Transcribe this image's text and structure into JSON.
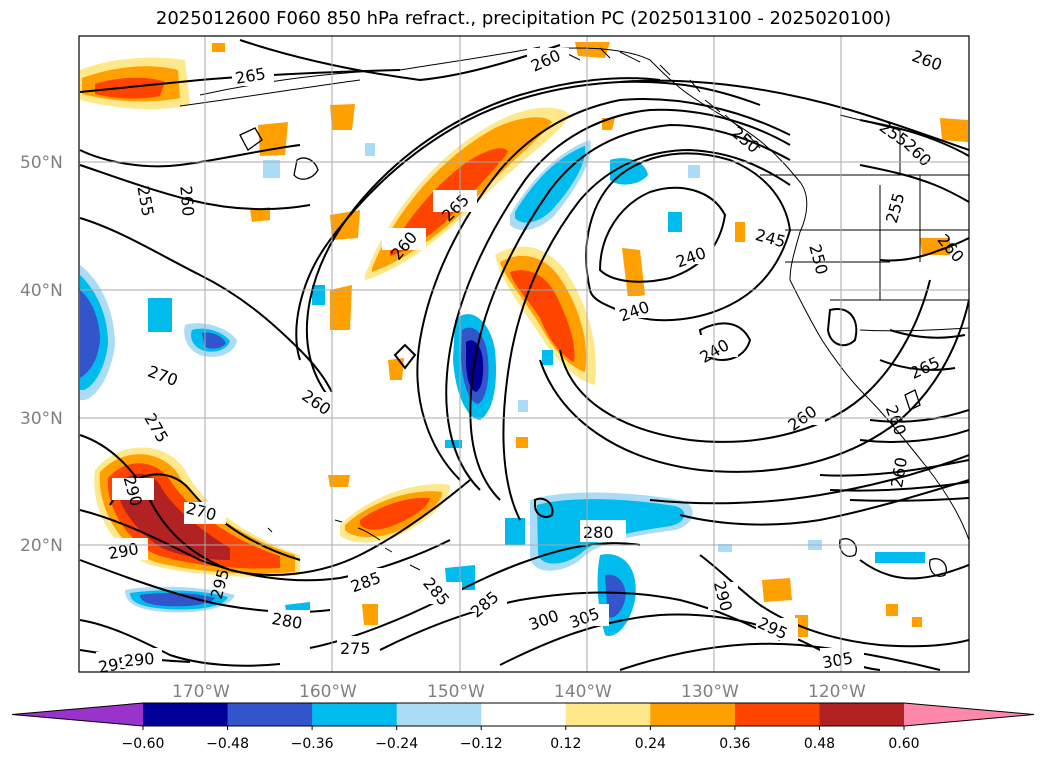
{
  "title": "2025012600 F060 850 hPa refract., precipitation PC (2025013100 - 2025020100)",
  "axes": {
    "lat_labels": [
      "50°N",
      "40°N",
      "30°N",
      "20°N"
    ],
    "lon_labels": [
      "170°W",
      "160°W",
      "150°W",
      "140°W",
      "130°W",
      "120°W"
    ]
  },
  "contour_labels": [
    "265",
    "260",
    "260",
    "255",
    "260",
    "250",
    "255",
    "260",
    "265",
    "260",
    "255",
    "260",
    "240",
    "245",
    "240",
    "240",
    "250",
    "265",
    "260",
    "270",
    "275",
    "260",
    "290",
    "270",
    "290",
    "295",
    "280",
    "285",
    "285",
    "285",
    "275",
    "280",
    "300",
    "305",
    "290",
    "295",
    "305",
    "295",
    "290",
    "260",
    "260"
  ],
  "colorbar": {
    "colors": [
      "#9933cc",
      "#000099",
      "#3355cc",
      "#00bbee",
      "#aaddf5",
      "#ffffff",
      "#ffe88a",
      "#ffa000",
      "#ff4400",
      "#b22222",
      "#ff88aa"
    ],
    "ticks": [
      "−0.60",
      "−0.48",
      "−0.36",
      "−0.24",
      "−0.12",
      "0.12",
      "0.24",
      "0.36",
      "0.48",
      "0.60"
    ]
  }
}
